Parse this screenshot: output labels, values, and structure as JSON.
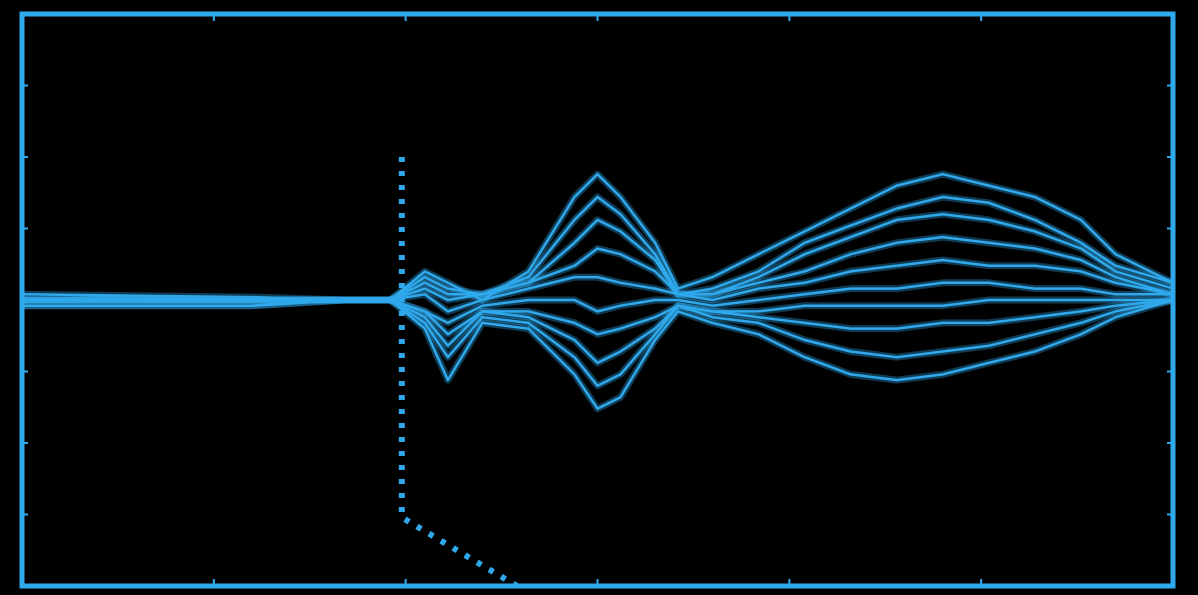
{
  "chart_data": {
    "type": "line",
    "title": "",
    "xlabel": "",
    "ylabel": "",
    "xlim": [
      0,
      100
    ],
    "ylim": [
      -50,
      50
    ],
    "grid": false,
    "legend": "none",
    "x_ticks": [
      0,
      16.67,
      33.33,
      50,
      66.67,
      83.33,
      100
    ],
    "y_ticks": [
      -50,
      -37.5,
      -25,
      -12.5,
      0,
      12.5,
      25,
      37.5,
      50
    ],
    "colors": {
      "trace": "#2fa8ec",
      "background": "#000000",
      "frame": "#2fa8ec"
    },
    "series": [
      {
        "x": [
          0,
          20,
          28,
          32,
          35,
          37,
          40,
          44,
          48,
          50,
          52,
          55,
          57,
          60,
          64,
          68,
          72,
          76,
          80,
          84,
          88,
          92,
          95,
          100
        ],
        "y": [
          1,
          0.5,
          0,
          0,
          5,
          3,
          0,
          5,
          18,
          22,
          18,
          10,
          2,
          4,
          8,
          12,
          16,
          20,
          22,
          20,
          18,
          14,
          8,
          3
        ]
      },
      {
        "x": [
          0,
          20,
          28,
          32,
          35,
          37,
          40,
          44,
          48,
          50,
          52,
          55,
          57,
          60,
          64,
          68,
          72,
          76,
          80,
          84,
          88,
          92,
          95,
          100
        ],
        "y": [
          0,
          0,
          0,
          0,
          4,
          2,
          1,
          4,
          14,
          18,
          15,
          8,
          1,
          2,
          5,
          10,
          13,
          16,
          18,
          17,
          14,
          10,
          6,
          3
        ]
      },
      {
        "x": [
          0,
          20,
          28,
          32,
          35,
          37,
          40,
          44,
          48,
          50,
          52,
          55,
          57,
          60,
          64,
          68,
          72,
          76,
          80,
          84,
          88,
          92,
          95,
          100
        ],
        "y": [
          0,
          0,
          0,
          0,
          3,
          1,
          1,
          3,
          10,
          14,
          12,
          7,
          1,
          1,
          4,
          8,
          11,
          14,
          15,
          14,
          12,
          9,
          5,
          2
        ]
      },
      {
        "x": [
          0,
          20,
          28,
          32,
          35,
          37,
          40,
          44,
          48,
          50,
          52,
          55,
          57,
          60,
          64,
          68,
          72,
          76,
          80,
          84,
          88,
          92,
          95,
          100
        ],
        "y": [
          0,
          0,
          0,
          0,
          2,
          0,
          1,
          3,
          6,
          9,
          8,
          5,
          1,
          1,
          3,
          5,
          8,
          10,
          11,
          10,
          9,
          7,
          4,
          1
        ]
      },
      {
        "x": [
          0,
          20,
          28,
          32,
          35,
          37,
          40,
          44,
          48,
          50,
          52,
          55,
          57,
          60,
          64,
          68,
          72,
          76,
          80,
          84,
          88,
          92,
          95,
          100
        ],
        "y": [
          0,
          0,
          0,
          0,
          1,
          -2,
          0,
          2,
          4,
          4,
          3,
          2,
          1,
          0,
          2,
          3,
          5,
          6,
          7,
          6,
          6,
          5,
          3,
          1
        ]
      },
      {
        "x": [
          0,
          20,
          28,
          32,
          35,
          37,
          40,
          44,
          48,
          50,
          52,
          55,
          57,
          60,
          64,
          68,
          72,
          76,
          80,
          84,
          88,
          92,
          95,
          100
        ],
        "y": [
          0,
          0,
          0,
          0,
          -2,
          -4,
          -1,
          0,
          0,
          -2,
          -1,
          0,
          0,
          -1,
          0,
          1,
          2,
          2,
          3,
          3,
          2,
          2,
          1,
          1
        ]
      },
      {
        "x": [
          0,
          20,
          28,
          32,
          35,
          37,
          40,
          44,
          48,
          50,
          52,
          55,
          57,
          60,
          64,
          68,
          72,
          76,
          80,
          84,
          88,
          92,
          95,
          100
        ],
        "y": [
          0,
          0,
          0,
          0,
          -2,
          -6,
          -2,
          -2,
          -4,
          -6,
          -5,
          -3,
          -1,
          -2,
          -2,
          -1,
          -1,
          -1,
          -1,
          0,
          0,
          0,
          0,
          0
        ]
      },
      {
        "x": [
          0,
          20,
          28,
          32,
          35,
          37,
          40,
          44,
          48,
          50,
          52,
          55,
          57,
          60,
          64,
          68,
          72,
          76,
          80,
          84,
          88,
          92,
          95,
          100
        ],
        "y": [
          0,
          0,
          0,
          0,
          -3,
          -8,
          -2,
          -3,
          -7,
          -11,
          -9,
          -5,
          -1,
          -2,
          -3,
          -4,
          -5,
          -5,
          -4,
          -4,
          -3,
          -2,
          -1,
          0
        ]
      },
      {
        "x": [
          0,
          20,
          28,
          32,
          35,
          37,
          40,
          44,
          48,
          50,
          52,
          55,
          57,
          60,
          64,
          68,
          72,
          76,
          80,
          84,
          88,
          92,
          95,
          100
        ],
        "y": [
          -1,
          -1,
          0,
          0,
          -4,
          -10,
          -3,
          -4,
          -10,
          -15,
          -13,
          -6,
          -1,
          -3,
          -4,
          -7,
          -9,
          -10,
          -9,
          -8,
          -6,
          -4,
          -2,
          0
        ]
      },
      {
        "x": [
          0,
          20,
          28,
          32,
          35,
          37,
          40,
          44,
          48,
          50,
          52,
          55,
          57,
          60,
          64,
          68,
          72,
          76,
          80,
          84,
          88,
          92,
          95,
          100
        ],
        "y": [
          -1,
          -1,
          0,
          0,
          -5,
          -14,
          -4,
          -5,
          -13,
          -19,
          -17,
          -7,
          -2,
          -4,
          -6,
          -10,
          -13,
          -14,
          -13,
          -11,
          -9,
          -6,
          -3,
          0
        ]
      }
    ],
    "marker_line": {
      "x": [
        33,
        33,
        33,
        43
      ],
      "y": [
        25,
        8,
        -38,
        -50
      ]
    }
  }
}
